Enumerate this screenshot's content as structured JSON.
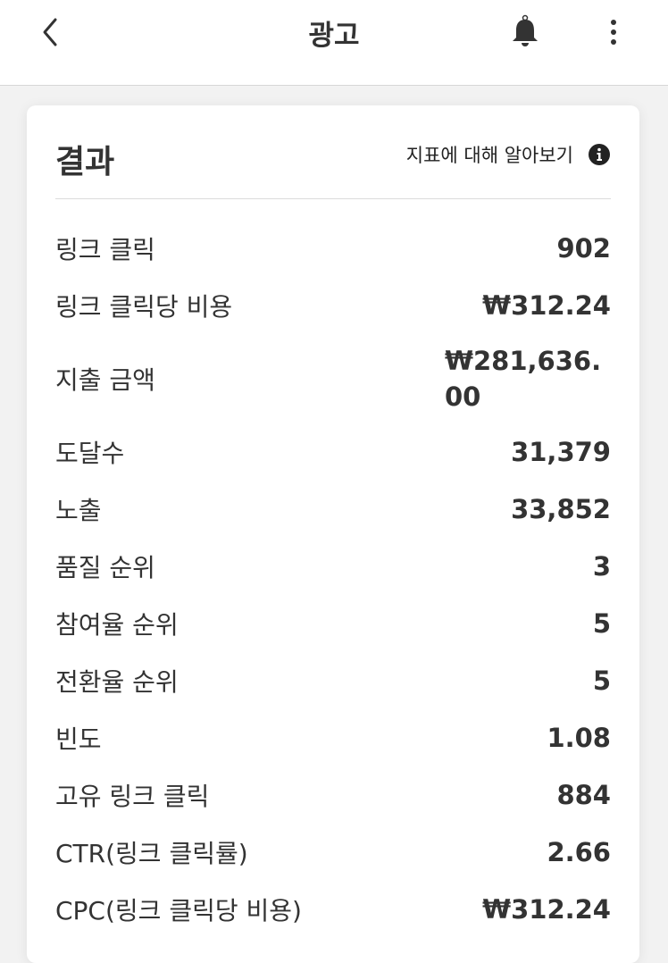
{
  "header": {
    "title": "광고",
    "icons": [
      "chevron-left-icon",
      "bell-icon",
      "more-vertical-icon"
    ]
  },
  "card": {
    "title": "결과",
    "learn_link": "지표에 대해 알아보기",
    "metrics": [
      {
        "label": "링크 클릭",
        "value": "902"
      },
      {
        "label": "링크 클릭당 비용",
        "value": "₩312.24"
      },
      {
        "label": "지출 금액",
        "value": "₩281,636.00"
      },
      {
        "label": "도달수",
        "value": "31,379"
      },
      {
        "label": "노출",
        "value": "33,852"
      },
      {
        "label": "품질 순위",
        "value": "3"
      },
      {
        "label": "참여율 순위",
        "value": "5"
      },
      {
        "label": "전환율 순위",
        "value": "5"
      },
      {
        "label": "빈도",
        "value": "1.08"
      },
      {
        "label": "고유 링크 클릭",
        "value": "884"
      },
      {
        "label": "CTR(링크 클릭률)",
        "value": "2.66"
      },
      {
        "label": "CPC(링크 클릭당 비용)",
        "value": "₩312.24"
      }
    ]
  }
}
